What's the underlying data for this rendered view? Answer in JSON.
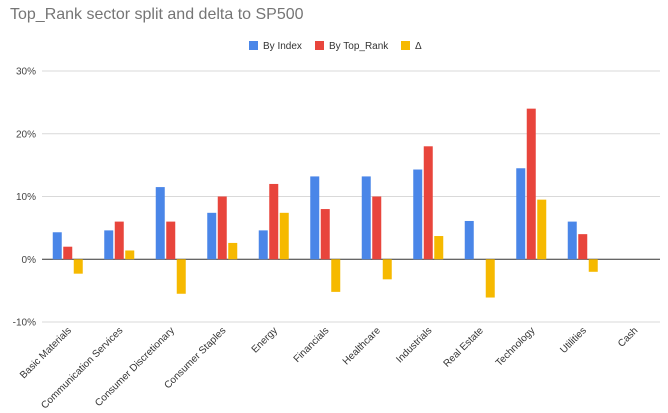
{
  "chart_data": {
    "type": "bar",
    "title": "Top_Rank sector split and delta to SP500",
    "xlabel": "",
    "ylabel": "",
    "ylim": [
      -10,
      30
    ],
    "yticks": [
      30,
      20,
      10,
      0,
      -10
    ],
    "ytick_labels": [
      "30%",
      "20%",
      "10%",
      "0%",
      "-10%"
    ],
    "legend_position": "top",
    "categories": [
      "Basic Materials",
      "Communication Services",
      "Consumer Discretionary",
      "Consumer Staples",
      "Energy",
      "Financials",
      "Healthcare",
      "Industrials",
      "Real Estate",
      "Technology",
      "Utilities",
      "Cash"
    ],
    "series": [
      {
        "name": "By Index",
        "color": "#4a86e8",
        "values": [
          4.3,
          4.6,
          11.5,
          7.4,
          4.6,
          13.2,
          13.2,
          14.3,
          6.1,
          14.5,
          6.0,
          0
        ]
      },
      {
        "name": "By Top_Rank",
        "color": "#e8453c",
        "values": [
          2.0,
          6.0,
          6.0,
          10.0,
          12.0,
          8.0,
          10.0,
          18.0,
          0,
          24.0,
          4.0,
          0
        ]
      },
      {
        "name": "Δ",
        "color": "#f6b900",
        "values": [
          -2.3,
          1.4,
          -5.5,
          2.6,
          7.4,
          -5.2,
          -3.2,
          3.7,
          -6.1,
          9.5,
          -2.0,
          0
        ]
      }
    ]
  }
}
